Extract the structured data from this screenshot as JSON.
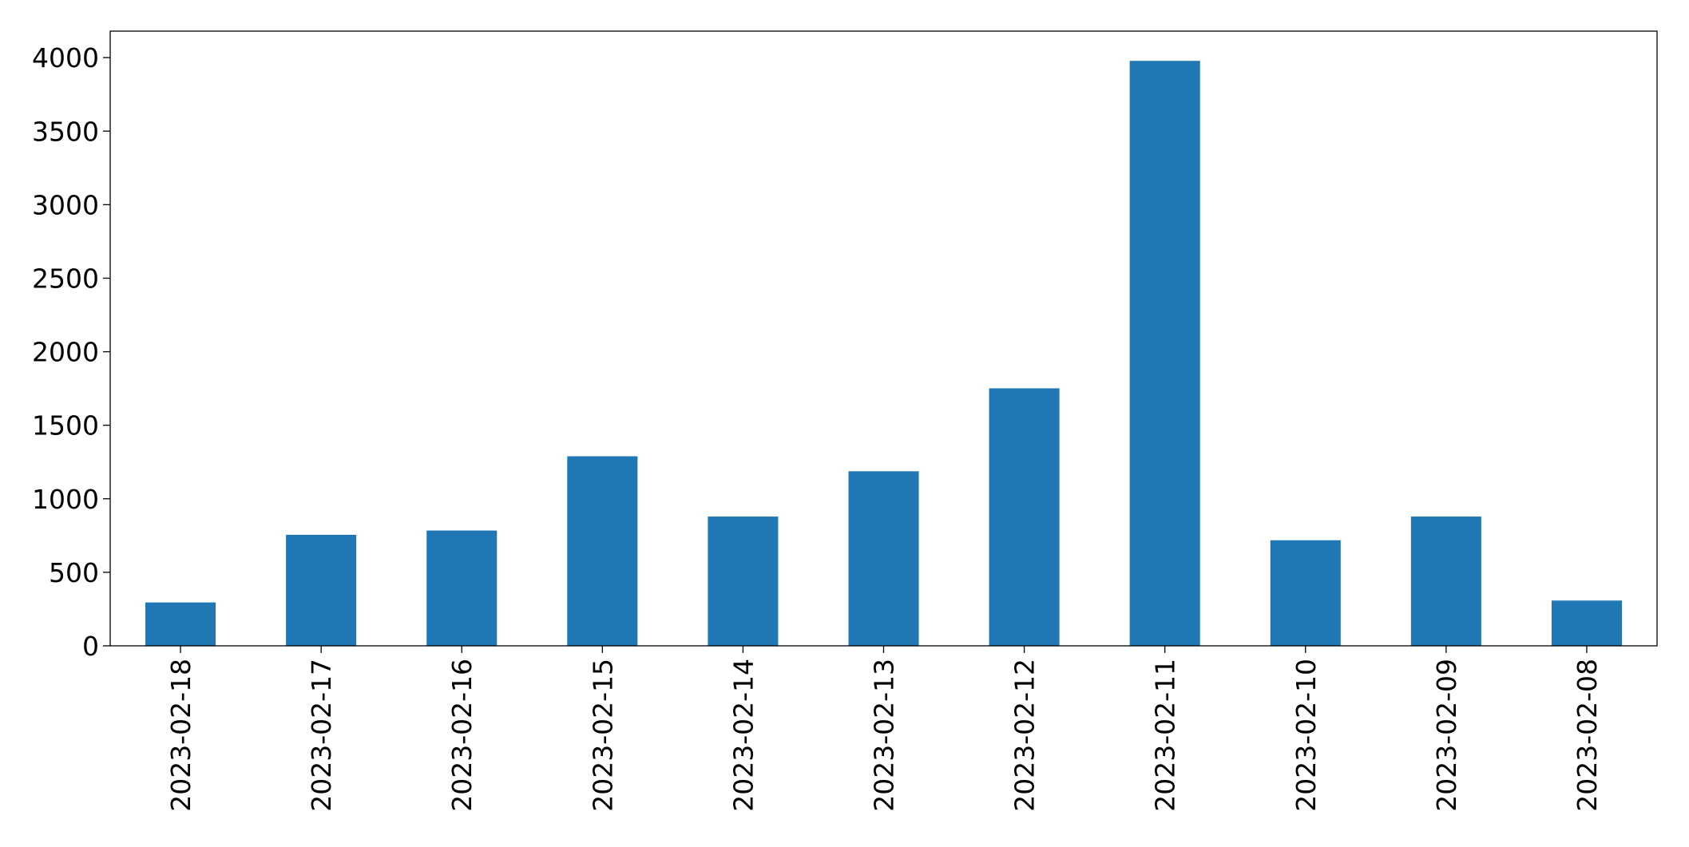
{
  "chart_data": {
    "type": "bar",
    "categories": [
      "2023-02-18",
      "2023-02-17",
      "2023-02-16",
      "2023-02-15",
      "2023-02-14",
      "2023-02-13",
      "2023-02-12",
      "2023-02-11",
      "2023-02-10",
      "2023-02-09",
      "2023-02-08"
    ],
    "values": [
      295,
      755,
      784,
      1289,
      879,
      1187,
      1751,
      3978,
      718,
      879,
      308
    ],
    "color": "#1f77b4",
    "ylim": [
      0,
      4180
    ],
    "yticks": [
      0,
      500,
      1000,
      1500,
      2000,
      2500,
      3000,
      3500,
      4000
    ],
    "grid": false
  }
}
